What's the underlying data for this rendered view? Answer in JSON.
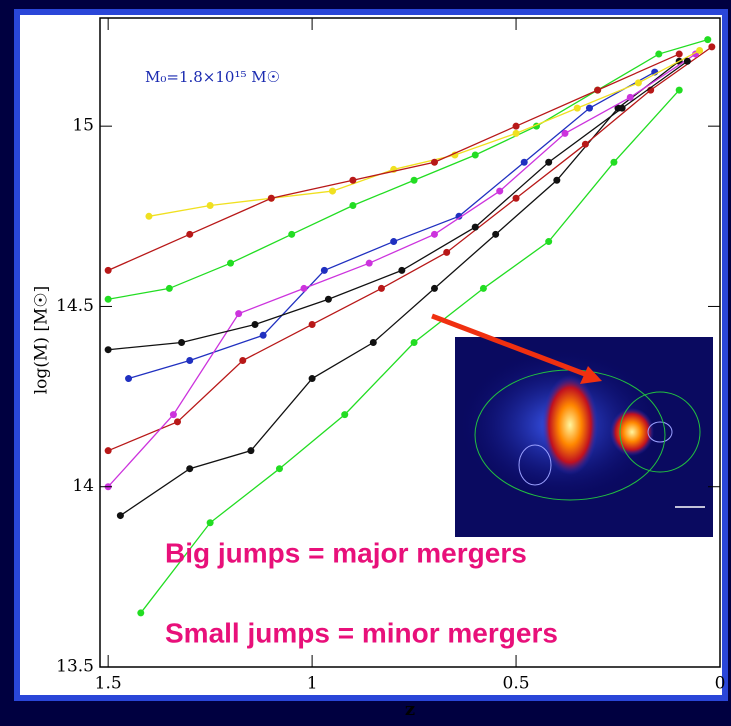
{
  "chart_data": {
    "type": "line",
    "annotation": "M₀=1.8×10¹⁵ M☉",
    "x_label": "z",
    "y_label": "log(M) [M☉]",
    "notes": [
      "Big jumps = major mergers",
      "Small jumps = minor mergers"
    ],
    "xlim": [
      1.52,
      0
    ],
    "ylim": [
      13.5,
      15.3
    ],
    "xticks": [
      1.5,
      1,
      0.5,
      0
    ],
    "yticks": [
      13.5,
      14,
      14.5,
      15
    ],
    "series": [
      {
        "color": "#22dd22",
        "x": [
          1.5,
          1.35,
          1.2,
          1.05,
          0.9,
          0.75,
          0.6,
          0.45,
          0.3,
          0.15,
          0.03
        ],
        "values": [
          14.52,
          14.55,
          14.62,
          14.7,
          14.78,
          14.85,
          14.92,
          15.0,
          15.1,
          15.2,
          15.24
        ]
      },
      {
        "color": "#111111",
        "x": [
          1.47,
          1.3,
          1.15,
          1.0,
          0.85,
          0.7,
          0.55,
          0.4,
          0.25,
          0.1
        ],
        "values": [
          13.92,
          14.05,
          14.1,
          14.3,
          14.4,
          14.55,
          14.7,
          14.85,
          15.05,
          15.18
        ]
      },
      {
        "color": "#b81818",
        "x": [
          1.5,
          1.33,
          1.17,
          1.0,
          0.83,
          0.67,
          0.5,
          0.33,
          0.17,
          0.02
        ],
        "values": [
          14.1,
          14.18,
          14.35,
          14.45,
          14.55,
          14.65,
          14.8,
          14.95,
          15.1,
          15.22
        ]
      },
      {
        "color": "#2030c0",
        "x": [
          1.45,
          1.3,
          1.12,
          0.97,
          0.8,
          0.64,
          0.48,
          0.32,
          0.16
        ],
        "values": [
          14.3,
          14.35,
          14.42,
          14.6,
          14.68,
          14.75,
          14.9,
          15.05,
          15.15
        ]
      },
      {
        "color": "#cc33dd",
        "x": [
          1.5,
          1.34,
          1.18,
          1.02,
          0.86,
          0.7,
          0.54,
          0.38,
          0.22,
          0.06
        ],
        "values": [
          14.0,
          14.2,
          14.48,
          14.55,
          14.62,
          14.7,
          14.82,
          14.98,
          15.08,
          15.2
        ]
      },
      {
        "color": "#f0e020",
        "x": [
          1.4,
          1.25,
          1.1,
          0.95,
          0.8,
          0.65,
          0.5,
          0.35,
          0.2,
          0.05
        ],
        "values": [
          14.75,
          14.78,
          14.8,
          14.82,
          14.88,
          14.92,
          14.98,
          15.05,
          15.12,
          15.21
        ]
      },
      {
        "color": "#22dd22",
        "x": [
          1.42,
          1.25,
          1.08,
          0.92,
          0.75,
          0.58,
          0.42,
          0.26,
          0.1
        ],
        "values": [
          13.65,
          13.9,
          14.05,
          14.2,
          14.4,
          14.55,
          14.68,
          14.9,
          15.1
        ]
      },
      {
        "color": "#111111",
        "x": [
          1.5,
          1.32,
          1.14,
          0.96,
          0.78,
          0.6,
          0.42,
          0.24,
          0.08
        ],
        "values": [
          14.38,
          14.4,
          14.45,
          14.52,
          14.6,
          14.72,
          14.9,
          15.05,
          15.18
        ]
      },
      {
        "color": "#b81818",
        "x": [
          1.5,
          1.3,
          1.1,
          0.9,
          0.7,
          0.5,
          0.3,
          0.1
        ],
        "values": [
          14.6,
          14.7,
          14.8,
          14.85,
          14.9,
          15.0,
          15.1,
          15.2
        ]
      }
    ]
  }
}
